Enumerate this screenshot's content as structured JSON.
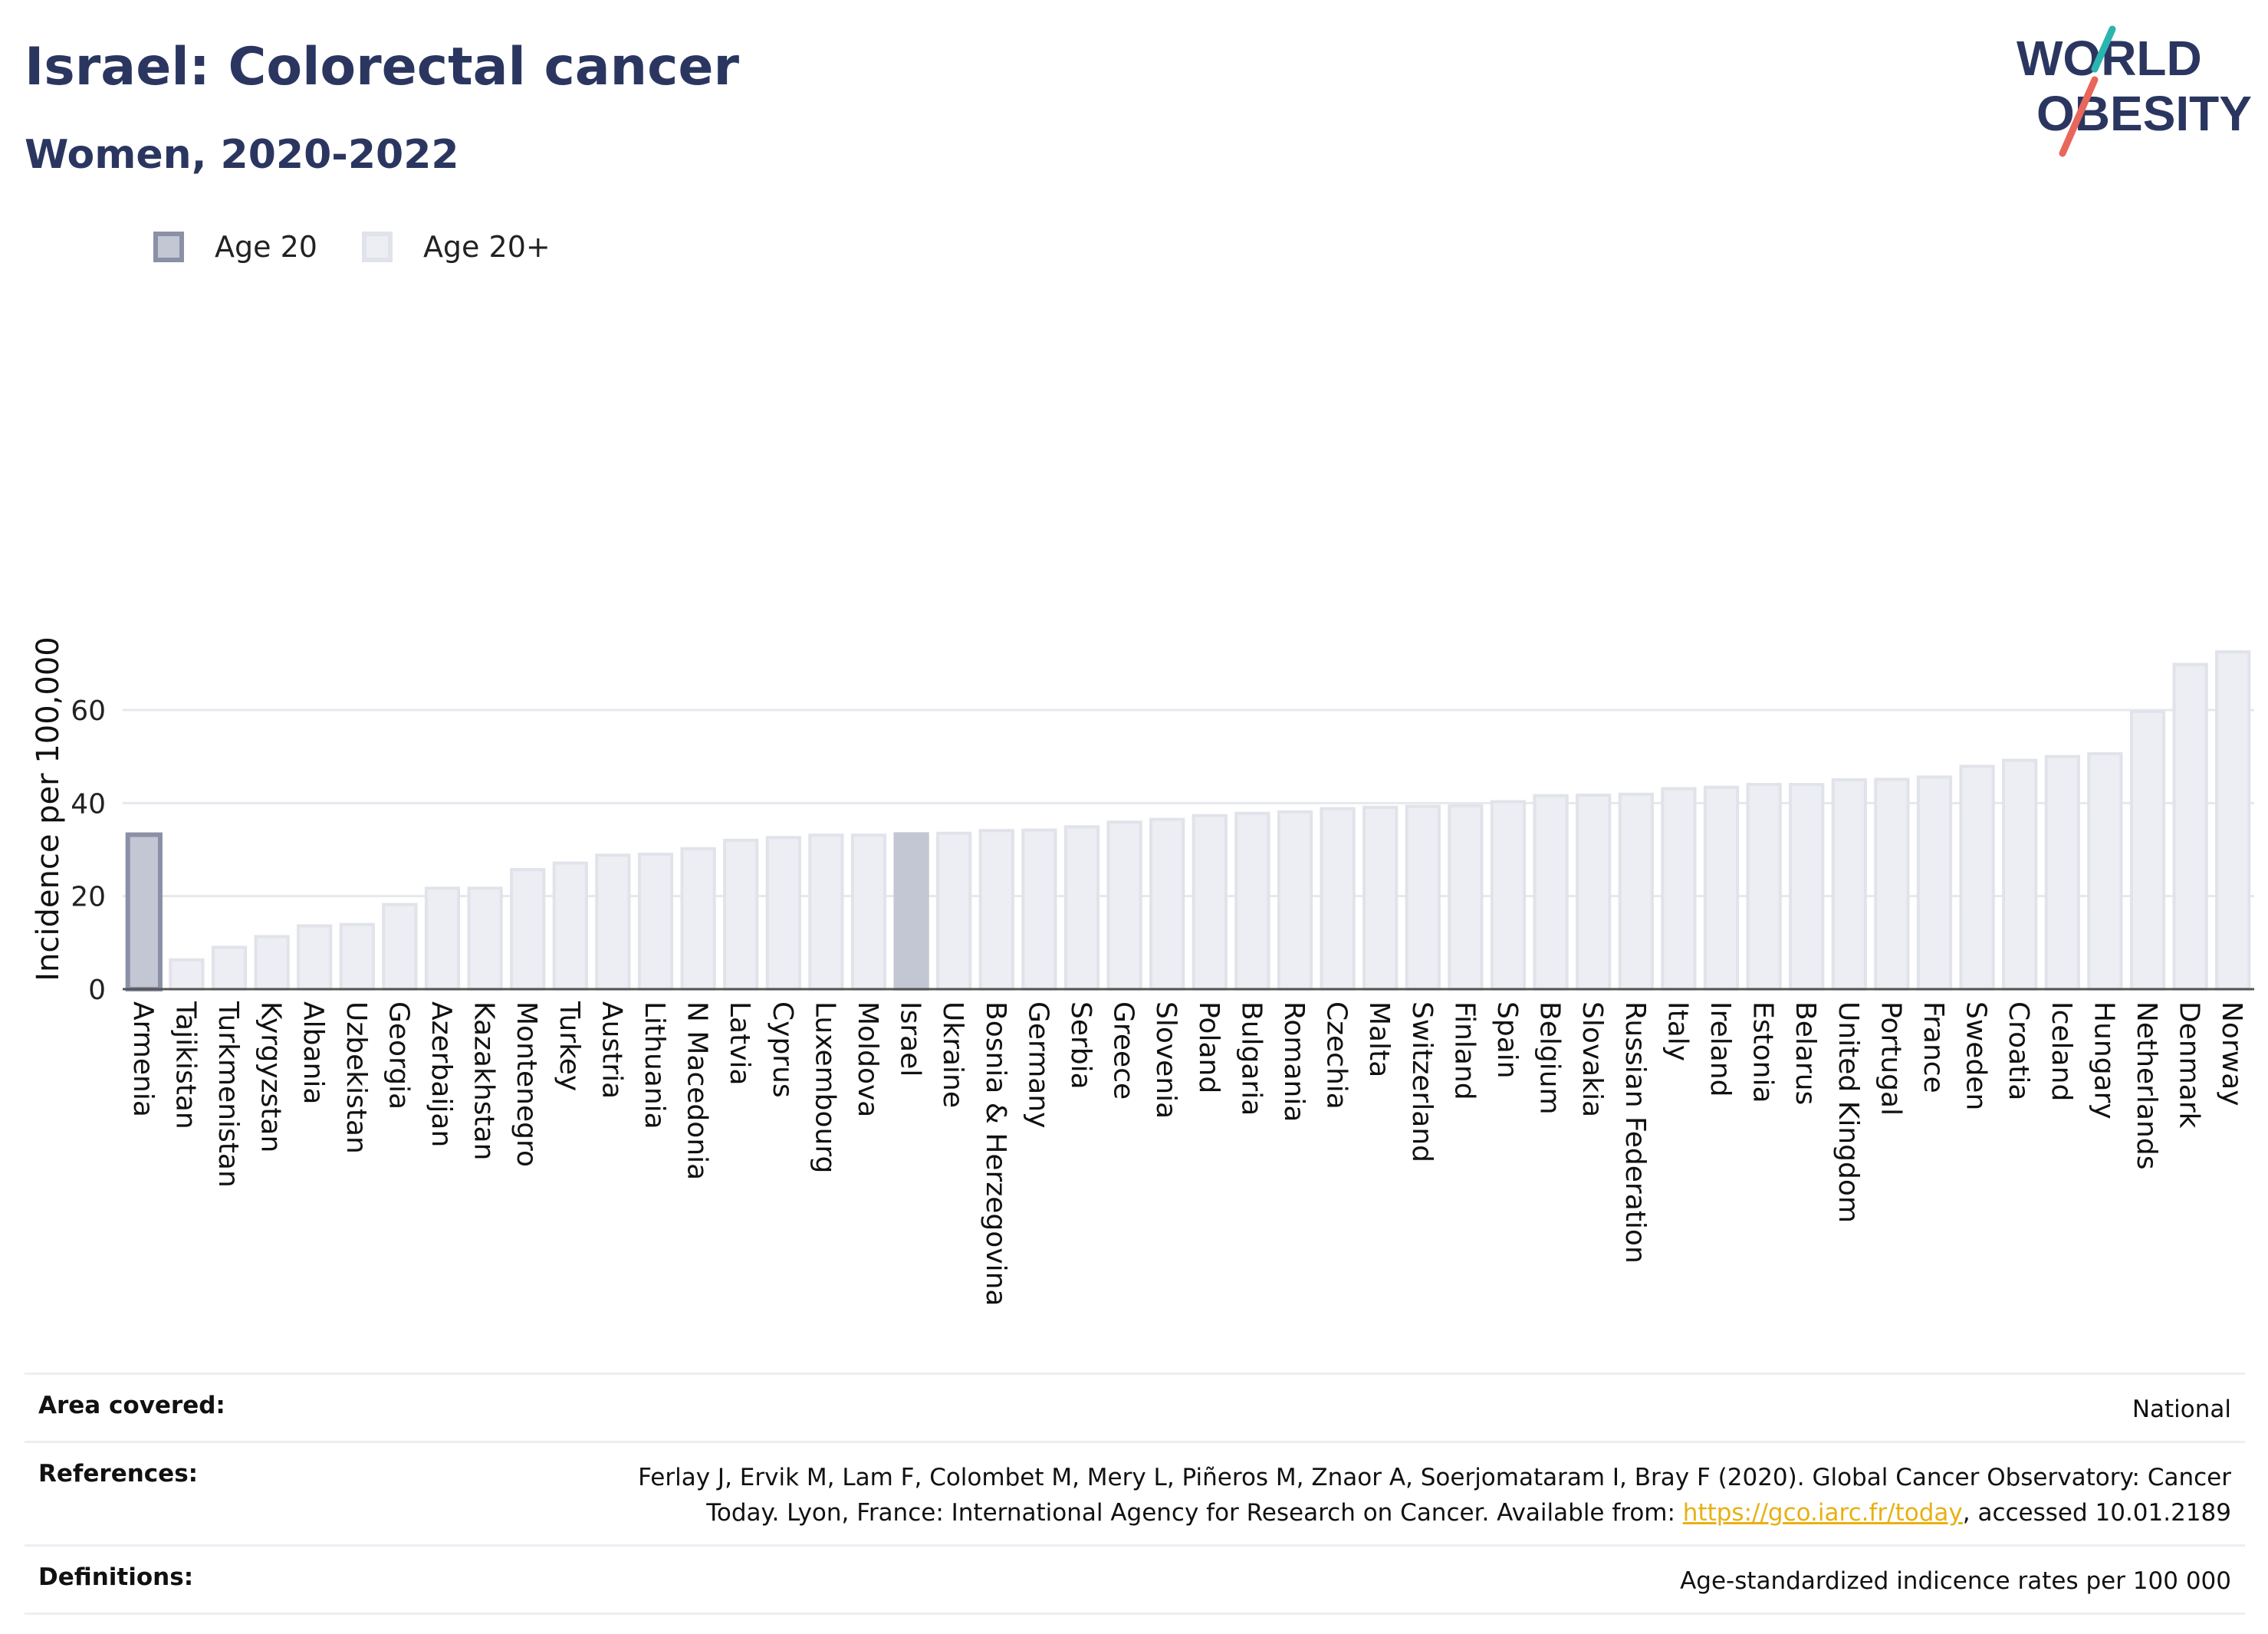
{
  "header": {
    "title": "Israel: Colorectal cancer",
    "subtitle": "Women, 2020-2022"
  },
  "logo": {
    "line1": "WORLD",
    "line2": "OBESITY",
    "accent_teal": "#2bb5b0",
    "accent_coral": "#e8665a"
  },
  "legend": {
    "items": [
      {
        "label": "Age 20",
        "color": "#c3c6d3"
      },
      {
        "label": "Age 20+",
        "color": "#eceef3"
      }
    ]
  },
  "chart_data": {
    "type": "bar",
    "title": "Israel: Colorectal cancer",
    "subtitle": "Women, 2020-2022",
    "ylabel": "Incidence per 100,000",
    "xlabel": "",
    "ylim": [
      0,
      75
    ],
    "yticks": [
      0,
      20,
      40,
      60
    ],
    "grid": true,
    "legend_position": "top-left",
    "highlight_color": "#c3c6d3",
    "highlight_border": "#8a90a6",
    "bar_color": "#eceef3",
    "bar_border": "#e1e3ea",
    "categories": [
      "Armenia",
      "Tajikistan",
      "Turkmenistan",
      "Kyrgyzstan",
      "Albania",
      "Uzbekistan",
      "Georgia",
      "Azerbaijan",
      "Kazakhstan",
      "Montenegro",
      "Turkey",
      "Austria",
      "Lithuania",
      "N Macedonia",
      "Latvia",
      "Cyprus",
      "Luxembourg",
      "Moldova",
      "Israel",
      "Ukraine",
      "Bosnia & Herzegovina",
      "Germany",
      "Serbia",
      "Greece",
      "Slovenia",
      "Poland",
      "Bulgaria",
      "Romania",
      "Czechia",
      "Malta",
      "Switzerland",
      "Finland",
      "Spain",
      "Belgium",
      "Slovakia",
      "Russian Federation",
      "Italy",
      "Ireland",
      "Estonia",
      "Belarus",
      "United Kingdom",
      "Portugal",
      "France",
      "Sweden",
      "Croatia",
      "Iceland",
      "Hungary",
      "Netherlands",
      "Denmark",
      "Norway"
    ],
    "values": [
      33.2,
      6.3,
      9.0,
      11.3,
      13.6,
      13.9,
      18.2,
      21.7,
      21.7,
      25.7,
      27.1,
      28.8,
      29.0,
      30.2,
      32.0,
      32.6,
      33.1,
      33.1,
      33.4,
      33.5,
      34.1,
      34.2,
      34.9,
      35.9,
      36.5,
      37.3,
      37.8,
      38.1,
      38.8,
      39.1,
      39.3,
      39.4,
      40.3,
      41.6,
      41.7,
      41.9,
      43.1,
      43.4,
      44.0,
      44.0,
      45.0,
      45.1,
      45.6,
      47.9,
      49.2,
      50.0,
      50.6,
      59.7,
      69.8,
      72.5
    ],
    "series_kind": [
      "Age 20",
      "Age 20+",
      "Age 20+",
      "Age 20+",
      "Age 20+",
      "Age 20+",
      "Age 20+",
      "Age 20+",
      "Age 20+",
      "Age 20+",
      "Age 20+",
      "Age 20+",
      "Age 20+",
      "Age 20+",
      "Age 20+",
      "Age 20+",
      "Age 20+",
      "Age 20+",
      "Age 20",
      "Age 20+",
      "Age 20+",
      "Age 20+",
      "Age 20+",
      "Age 20+",
      "Age 20+",
      "Age 20+",
      "Age 20+",
      "Age 20+",
      "Age 20+",
      "Age 20+",
      "Age 20+",
      "Age 20+",
      "Age 20+",
      "Age 20+",
      "Age 20+",
      "Age 20+",
      "Age 20+",
      "Age 20+",
      "Age 20+",
      "Age 20+",
      "Age 20+",
      "Age 20+",
      "Age 20+",
      "Age 20+",
      "Age 20+",
      "Age 20+",
      "Age 20+",
      "Age 20+",
      "Age 20+",
      "Age 20+"
    ],
    "outlined": [
      "Armenia"
    ]
  },
  "footer": {
    "area_label": "Area covered:",
    "area_value": "National",
    "references_label": "References:",
    "references_text_1": "Ferlay J, Ervik M, Lam F, Colombet M, Mery L, Piñeros M, Znaor A, Soerjomataram I, Bray F (2020). Global Cancer Observatory: Cancer Today. Lyon, France: International Agency for Research on Cancer. Available from: ",
    "references_link": "https://gco.iarc.fr/today",
    "references_text_2": ", accessed 10.01.2189",
    "definitions_label": "Definitions:",
    "definitions_value": "Age-standardized indicence rates per 100 000"
  }
}
